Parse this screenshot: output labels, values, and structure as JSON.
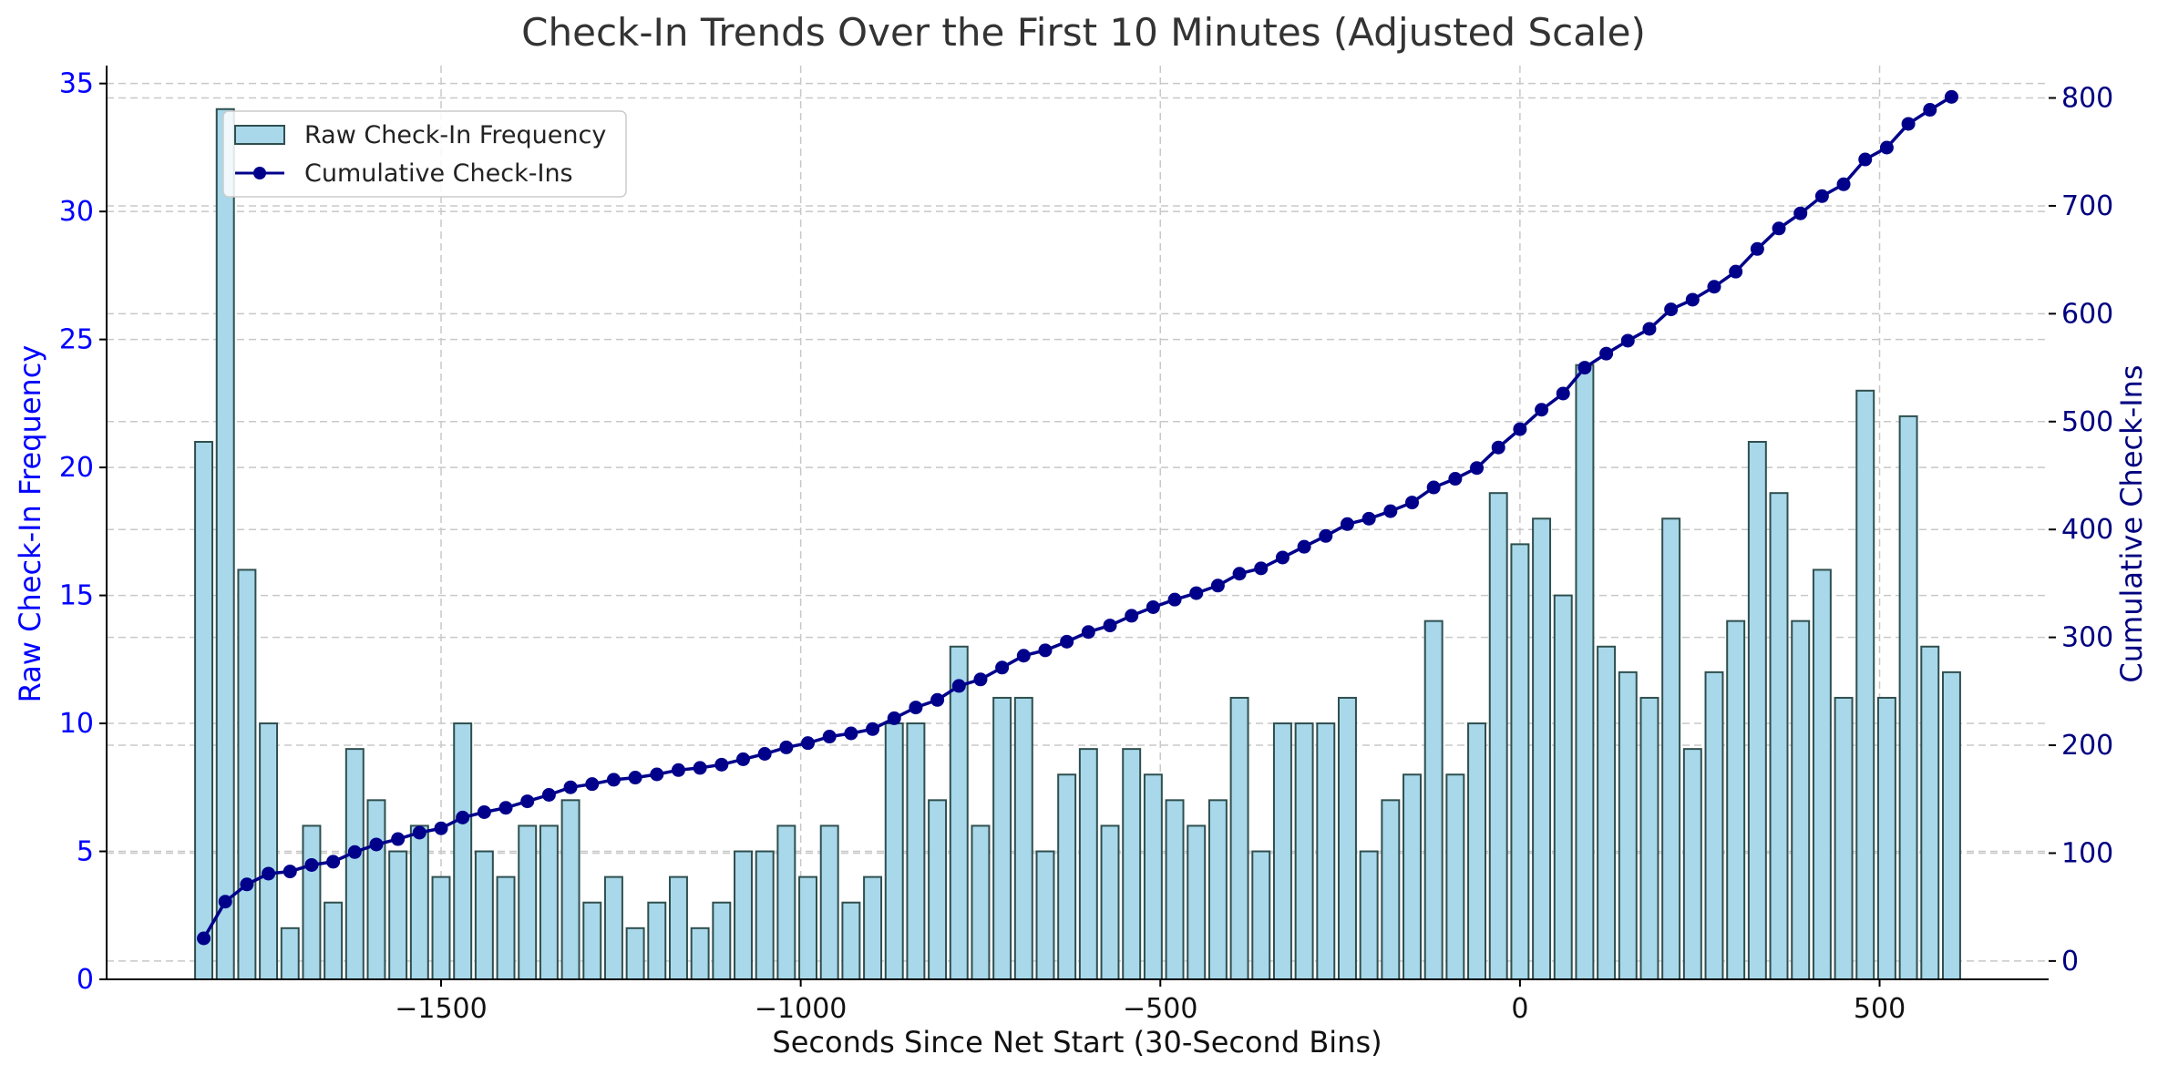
{
  "chart_data": {
    "type": "bar",
    "title": "Check-In Trends Over the First 10 Minutes (Adjusted Scale)",
    "xlabel": "Seconds Since Net Start (30-Second Bins)",
    "ylabel_left": "Raw Check-In Frequency",
    "ylabel_right": "Cumulative Check-Ins",
    "xlim": [
      -1965,
      735
    ],
    "ylim_left": [
      0,
      35.7
    ],
    "ylim_right": [
      -17,
      830
    ],
    "xticks": [
      -1500,
      -1000,
      -500,
      0,
      500
    ],
    "xtick_labels": [
      "−1500",
      "−1000",
      "−500",
      "0",
      "500"
    ],
    "yticks_left": [
      0,
      5,
      10,
      15,
      20,
      25,
      30,
      35
    ],
    "yticks_right": [
      0,
      100,
      200,
      300,
      400,
      500,
      600,
      700,
      800
    ],
    "grid": true,
    "legend_position": "upper-left",
    "colors": {
      "bar_fill": "#a8d8ea",
      "bar_edge": "#2f4f4f",
      "line": "#00008b",
      "left_axis": "#0000ff",
      "right_axis": "#000080"
    },
    "x": [
      -1830,
      -1800,
      -1770,
      -1740,
      -1710,
      -1680,
      -1650,
      -1620,
      -1590,
      -1560,
      -1530,
      -1500,
      -1470,
      -1440,
      -1410,
      -1380,
      -1350,
      -1320,
      -1290,
      -1260,
      -1230,
      -1200,
      -1170,
      -1140,
      -1110,
      -1080,
      -1050,
      -1020,
      -990,
      -960,
      -930,
      -900,
      -870,
      -840,
      -810,
      -780,
      -750,
      -720,
      -690,
      -660,
      -630,
      -600,
      -570,
      -540,
      -510,
      -480,
      -450,
      -420,
      -390,
      -360,
      -330,
      -300,
      -270,
      -240,
      -210,
      -180,
      -150,
      -120,
      -90,
      -60,
      -30,
      0,
      30,
      60,
      90,
      120,
      150,
      180,
      210,
      240,
      270,
      300,
      330,
      360,
      390,
      420,
      450,
      480,
      510,
      540,
      570,
      600
    ],
    "series": [
      {
        "name": "Raw Check-In Frequency",
        "axis": "left",
        "values": [
          21,
          34,
          16,
          10,
          2,
          6,
          3,
          9,
          7,
          5,
          6,
          4,
          10,
          5,
          4,
          6,
          6,
          7,
          3,
          4,
          2,
          3,
          4,
          2,
          3,
          5,
          5,
          6,
          4,
          6,
          3,
          4,
          10,
          10,
          7,
          13,
          6,
          11,
          11,
          5,
          8,
          9,
          6,
          9,
          8,
          7,
          6,
          7,
          11,
          5,
          10,
          10,
          10,
          11,
          5,
          7,
          8,
          14,
          8,
          10,
          19,
          17,
          18,
          15,
          24,
          13,
          12,
          11,
          18,
          9,
          12,
          14,
          21,
          19,
          14,
          16,
          11,
          23,
          11,
          22,
          13,
          12
        ]
      },
      {
        "name": "Cumulative Check-Ins",
        "axis": "right",
        "values": [
          21,
          55,
          71,
          81,
          83,
          89,
          92,
          101,
          108,
          113,
          119,
          123,
          133,
          138,
          142,
          148,
          154,
          161,
          164,
          168,
          170,
          173,
          177,
          179,
          182,
          187,
          192,
          198,
          202,
          208,
          211,
          215,
          225,
          235,
          242,
          255,
          261,
          272,
          283,
          288,
          296,
          305,
          311,
          320,
          328,
          335,
          341,
          348,
          359,
          364,
          374,
          384,
          394,
          405,
          410,
          417,
          425,
          439,
          447,
          457,
          476,
          493,
          511,
          526,
          550,
          563,
          575,
          586,
          604,
          613,
          625,
          639,
          660,
          679,
          693,
          709,
          720,
          743,
          754,
          776,
          789,
          801
        ]
      }
    ]
  }
}
